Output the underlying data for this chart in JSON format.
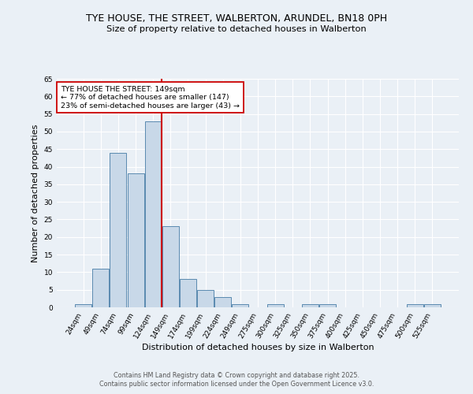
{
  "title_line1": "TYE HOUSE, THE STREET, WALBERTON, ARUNDEL, BN18 0PH",
  "title_line2": "Size of property relative to detached houses in Walberton",
  "xlabel": "Distribution of detached houses by size in Walberton",
  "ylabel": "Number of detached properties",
  "bar_labels": [
    "24sqm",
    "49sqm",
    "74sqm",
    "99sqm",
    "124sqm",
    "149sqm",
    "174sqm",
    "199sqm",
    "224sqm",
    "249sqm",
    "275sqm",
    "300sqm",
    "325sqm",
    "350sqm",
    "375sqm",
    "400sqm",
    "425sqm",
    "450sqm",
    "475sqm",
    "500sqm",
    "525sqm"
  ],
  "bar_values": [
    1,
    11,
    44,
    38,
    53,
    23,
    8,
    5,
    3,
    1,
    0,
    1,
    0,
    1,
    1,
    0,
    0,
    0,
    0,
    1,
    1
  ],
  "bar_color": "#c8d8e8",
  "bar_edge_color": "#5a8ab0",
  "highlight_bar_index": 5,
  "highlight_color": "#cc0000",
  "annotation_text": "TYE HOUSE THE STREET: 149sqm\n← 77% of detached houses are smaller (147)\n23% of semi-detached houses are larger (43) →",
  "annotation_box_color": "#ffffff",
  "annotation_box_edge": "#cc0000",
  "bg_color": "#eaf0f6",
  "grid_color": "#ffffff",
  "footer_line1": "Contains HM Land Registry data © Crown copyright and database right 2025.",
  "footer_line2": "Contains public sector information licensed under the Open Government Licence v3.0.",
  "ylim": [
    0,
    65
  ],
  "yticks": [
    0,
    5,
    10,
    15,
    20,
    25,
    30,
    35,
    40,
    45,
    50,
    55,
    60,
    65
  ]
}
